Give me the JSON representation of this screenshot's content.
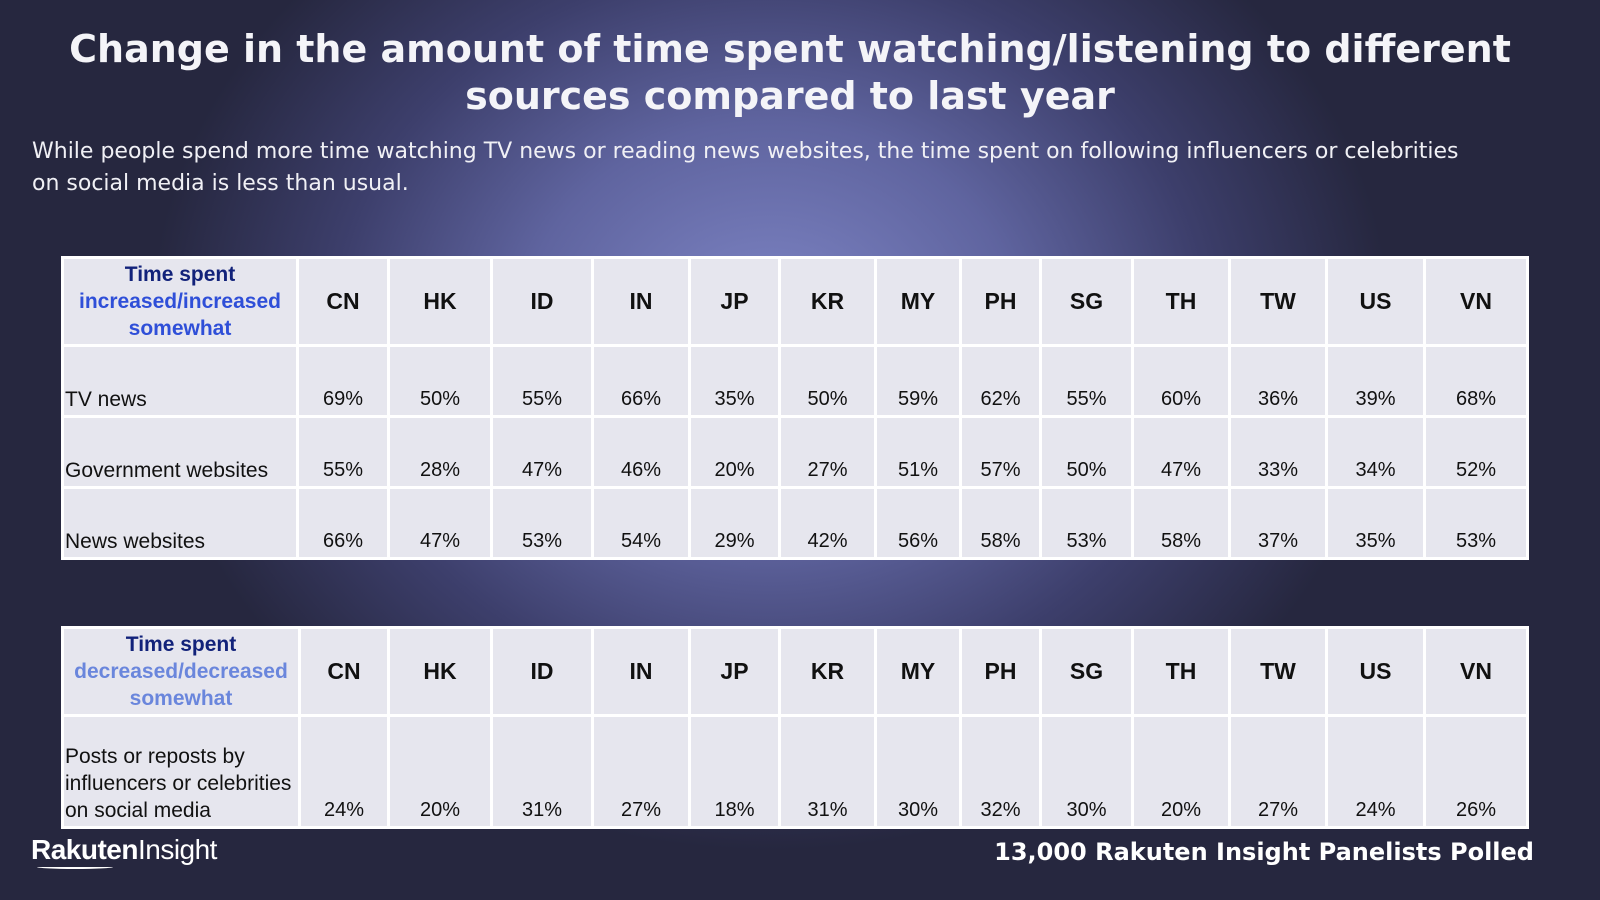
{
  "title": "Change in the amount of time spent watching/listening to different sources compared to last year",
  "subtitle": "While people spend more time watching TV news or reading news websites, the time spent on following influencers or celebrities on social media is less than usual.",
  "countries": [
    "CN",
    "HK",
    "ID",
    "IN",
    "JP",
    "KR",
    "MY",
    "PH",
    "SG",
    "TH",
    "TW",
    "US",
    "VN"
  ],
  "chart_data": [
    {
      "type": "table",
      "header": {
        "line1": "Time spent",
        "line2": "increased/increased",
        "line3": "somewhat"
      },
      "columns": [
        "CN",
        "HK",
        "ID",
        "IN",
        "JP",
        "KR",
        "MY",
        "PH",
        "SG",
        "TH",
        "TW",
        "US",
        "VN"
      ],
      "rows": [
        {
          "label": "TV news",
          "values": [
            "69%",
            "50%",
            "55%",
            "66%",
            "35%",
            "50%",
            "59%",
            "62%",
            "55%",
            "60%",
            "36%",
            "39%",
            "68%"
          ]
        },
        {
          "label": "Government websites",
          "values": [
            "55%",
            "28%",
            "47%",
            "46%",
            "20%",
            "27%",
            "51%",
            "57%",
            "50%",
            "47%",
            "33%",
            "34%",
            "52%"
          ]
        },
        {
          "label": "News websites",
          "values": [
            "66%",
            "47%",
            "53%",
            "54%",
            "29%",
            "42%",
            "56%",
            "58%",
            "53%",
            "58%",
            "37%",
            "35%",
            "53%"
          ]
        }
      ]
    },
    {
      "type": "table",
      "header": {
        "line1": "Time spent",
        "line2": "decreased/decreased",
        "line3": "somewhat"
      },
      "columns": [
        "CN",
        "HK",
        "ID",
        "IN",
        "JP",
        "KR",
        "MY",
        "PH",
        "SG",
        "TH",
        "TW",
        "US",
        "VN"
      ],
      "rows": [
        {
          "label": "Posts or reposts by influencers or celebrities on social media",
          "values": [
            "24%",
            "20%",
            "31%",
            "27%",
            "18%",
            "31%",
            "30%",
            "32%",
            "30%",
            "20%",
            "27%",
            "24%",
            "26%"
          ]
        }
      ]
    }
  ],
  "brand": {
    "logo_part1": "Rakuten",
    "logo_part2": "Insight"
  },
  "footer": "13,000  Rakuten Insight Panelists Polled",
  "colors": {
    "header_dark": "#12227a",
    "header_blue": "#2f4fd8",
    "header_light": "#6a86dc",
    "cell_bg": "#e6e6ee"
  }
}
